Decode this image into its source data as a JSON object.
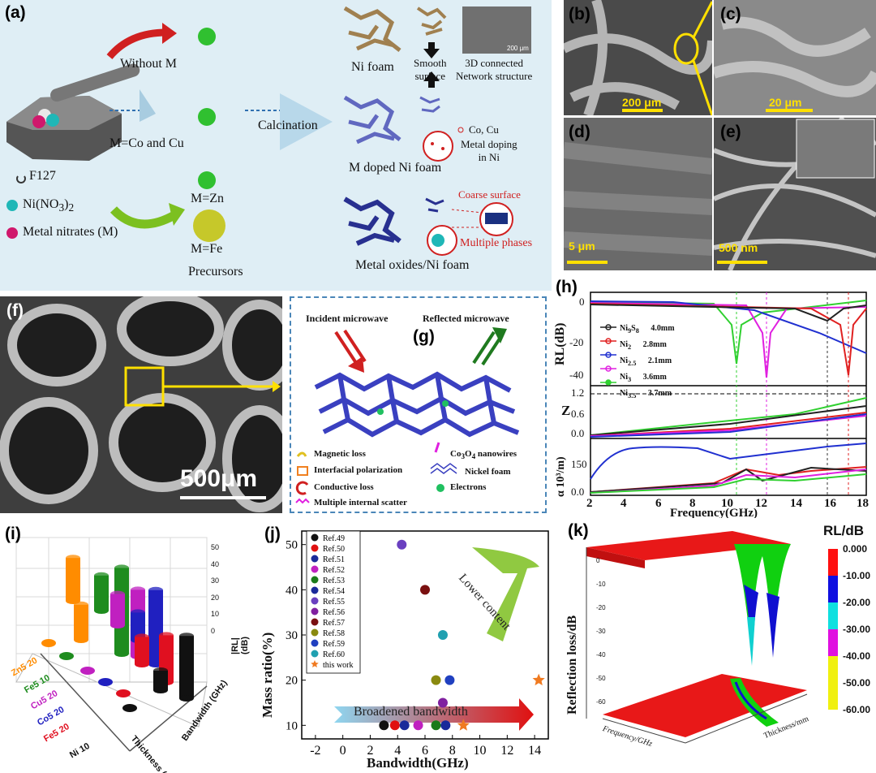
{
  "panel_a": {
    "label": "(a)",
    "without_m": "Without M",
    "m_co_cu": "M=Co and Cu",
    "calcination": "Calcination",
    "m_zn": "M=Zn",
    "m_fe": "M=Fe",
    "precursors": "Precursors",
    "legend_f127": "F127",
    "legend_ni_no3": "Ni(NO",
    "legend_ni_sub3": "3",
    "legend_ni_close": ")",
    "legend_ni_sub2": "2",
    "legend_metal_nitrates": "Metal nitrates (M)",
    "ni_foam": "Ni foam",
    "smooth_surface_1": "Smooth",
    "smooth_surface_2": "surface",
    "network_1": "3D connected",
    "network_2": "Network structure",
    "inset_scale": "200 μm",
    "m_doped": "M doped Ni foam",
    "co_cu": "Co, Cu",
    "metal_doping_1": "Metal doping",
    "metal_doping_2": "in Ni",
    "coarse_surface": "Coarse surface",
    "multiple_phases": "Multiple phases",
    "metal_oxides": "Metal oxides/Ni foam"
  },
  "panel_sem": {
    "b_label": "(b)",
    "b_scale": "200 μm",
    "c_label": "(c)",
    "c_scale": "20 μm",
    "d_label": "(d)",
    "d_scale": "5 μm",
    "e_label": "(e)",
    "e_scale": "500 nm",
    "f_label": "(f)",
    "f_scale": "500μm"
  },
  "panel_g": {
    "label": "(g)",
    "incident": "Incident microwave",
    "reflected": "Reflected microwave",
    "magnetic_loss": "Magnetic loss",
    "interfacial": "Interfacial polarization",
    "conductive": "Conductive loss",
    "scatter": "Multiple internal scatter",
    "nanowires_a": "Co",
    "nanowires_b": "3",
    "nanowires_c": "O",
    "nanowires_d": "4",
    "nanowires_e": " nanowires",
    "nickel_foam": "Nickel foam",
    "electrons": "Electrons"
  },
  "panel_h": {
    "label": "(h)",
    "ylabel_rl": "RL(dB)",
    "ylabel_z": "Z",
    "ylabel_alpha": "α 10³/m)",
    "xlabel": "Frequency(GHz)",
    "rl_ticks": [
      "0",
      "-20",
      "-40"
    ],
    "z_ticks": [
      "1.2",
      "0.6",
      "0.0"
    ],
    "alpha_ticks": [
      "150",
      "0.0"
    ],
    "x_ticks": [
      "2",
      "4",
      "6",
      "8",
      "10",
      "12",
      "14",
      "16",
      "18"
    ],
    "legend": [
      {
        "name": "Ni",
        "sub": "9",
        "mid": "S",
        "sub2": "8",
        "thick": "4.0mm",
        "color": "#222222"
      },
      {
        "name": "Ni",
        "sub": "2",
        "mid": "",
        "sub2": "",
        "thick": "2.8mm",
        "color": "#e02020"
      },
      {
        "name": "Ni",
        "sub": "2.5",
        "mid": "",
        "sub2": "",
        "thick": "2.1mm",
        "color": "#2030d0"
      },
      {
        "name": "Ni",
        "sub": "3",
        "mid": "",
        "sub2": "",
        "thick": "3.6mm",
        "color": "#e020e0"
      },
      {
        "name": "Ni",
        "sub": "3.5",
        "mid": "",
        "sub2": "",
        "thick": "3.7mm",
        "color": "#30d030"
      }
    ]
  },
  "panel_i": {
    "label": "(i)",
    "rows": [
      "Zn5 20",
      "Fe5 10",
      "Cu5 20",
      "Co5 20",
      "Fe5 20",
      "Ni 10"
    ],
    "row_colors": [
      "#ff8c00",
      "#1e8c1e",
      "#c020c0",
      "#2020c0",
      "#e01020",
      "#111111"
    ],
    "axis_rl": "|RL| (dB)",
    "axis_bw": "Bandwidth (GHz)",
    "axis_th": "Thickness (mm)",
    "z_ticks": [
      "50",
      "40",
      "30",
      "20",
      "10",
      "0"
    ]
  },
  "chart_data": {
    "type": "scatter",
    "label": "(j)",
    "xlabel": "Bandwidth(GHz)",
    "ylabel": "Mass ratio(%)",
    "xlim": [
      -3,
      15
    ],
    "ylim": [
      7,
      53
    ],
    "x_ticks": [
      -2,
      0,
      2,
      4,
      6,
      8,
      10,
      12,
      14
    ],
    "y_ticks": [
      10,
      20,
      30,
      40,
      50
    ],
    "annotation_lower": "Lower content",
    "annotation_broad": "Broadened bandwidth",
    "series": [
      {
        "name": "Ref.49",
        "color": "#111111",
        "x": [
          3.0
        ],
        "y": [
          10
        ]
      },
      {
        "name": "Ref.50",
        "color": "#e01010",
        "x": [
          3.8
        ],
        "y": [
          10
        ]
      },
      {
        "name": "Ref.51",
        "color": "#1a2a9a",
        "x": [
          4.5
        ],
        "y": [
          10
        ]
      },
      {
        "name": "Ref.52",
        "color": "#c020c0",
        "x": [
          5.5
        ],
        "y": [
          10
        ]
      },
      {
        "name": "Ref.53",
        "color": "#1a7a1a",
        "x": [
          6.8
        ],
        "y": [
          10
        ]
      },
      {
        "name": "Ref.54",
        "color": "#1a2a9a",
        "x": [
          7.5
        ],
        "y": [
          10
        ]
      },
      {
        "name": "Ref.55",
        "color": "#6a40c0",
        "x": [
          4.3
        ],
        "y": [
          50
        ]
      },
      {
        "name": "Ref.56",
        "color": "#8020a0",
        "x": [
          7.3
        ],
        "y": [
          15
        ]
      },
      {
        "name": "Ref.57",
        "color": "#7a1010",
        "x": [
          6.0
        ],
        "y": [
          40
        ]
      },
      {
        "name": "Ref.58",
        "color": "#8a8a10",
        "x": [
          6.8
        ],
        "y": [
          20
        ]
      },
      {
        "name": "Ref.59",
        "color": "#2040c0",
        "x": [
          7.8
        ],
        "y": [
          20
        ]
      },
      {
        "name": "Ref.60",
        "color": "#20a0b0",
        "x": [
          7.3
        ],
        "y": [
          30
        ]
      },
      {
        "name": "this work",
        "color": "#f07a20",
        "marker": "star",
        "x": [
          8.8,
          14.3
        ],
        "y": [
          10,
          20
        ]
      }
    ]
  },
  "panel_k": {
    "label": "(k)",
    "zlabel": "Reflection loss/dB",
    "xlabel": "Frequency/GHz",
    "ylabel": "Thickness/mm",
    "z_ticks": [
      "0",
      "-10",
      "-20",
      "-30",
      "-40",
      "-50",
      "-60"
    ],
    "colorbar_title": "RL/dB",
    "colorbar": [
      {
        "label": "0.000",
        "color": "#ff1010"
      },
      {
        "label": "-10.00",
        "color": "#10e010"
      },
      {
        "label": "-20.00",
        "color": "#1010e0"
      },
      {
        "label": "-30.00",
        "color": "#10e0e0"
      },
      {
        "label": "-40.00",
        "color": "#e010e0"
      },
      {
        "label": "-50.00",
        "color": "#f0f010"
      },
      {
        "label": "-60.00",
        "color": "#f0f010"
      }
    ]
  }
}
